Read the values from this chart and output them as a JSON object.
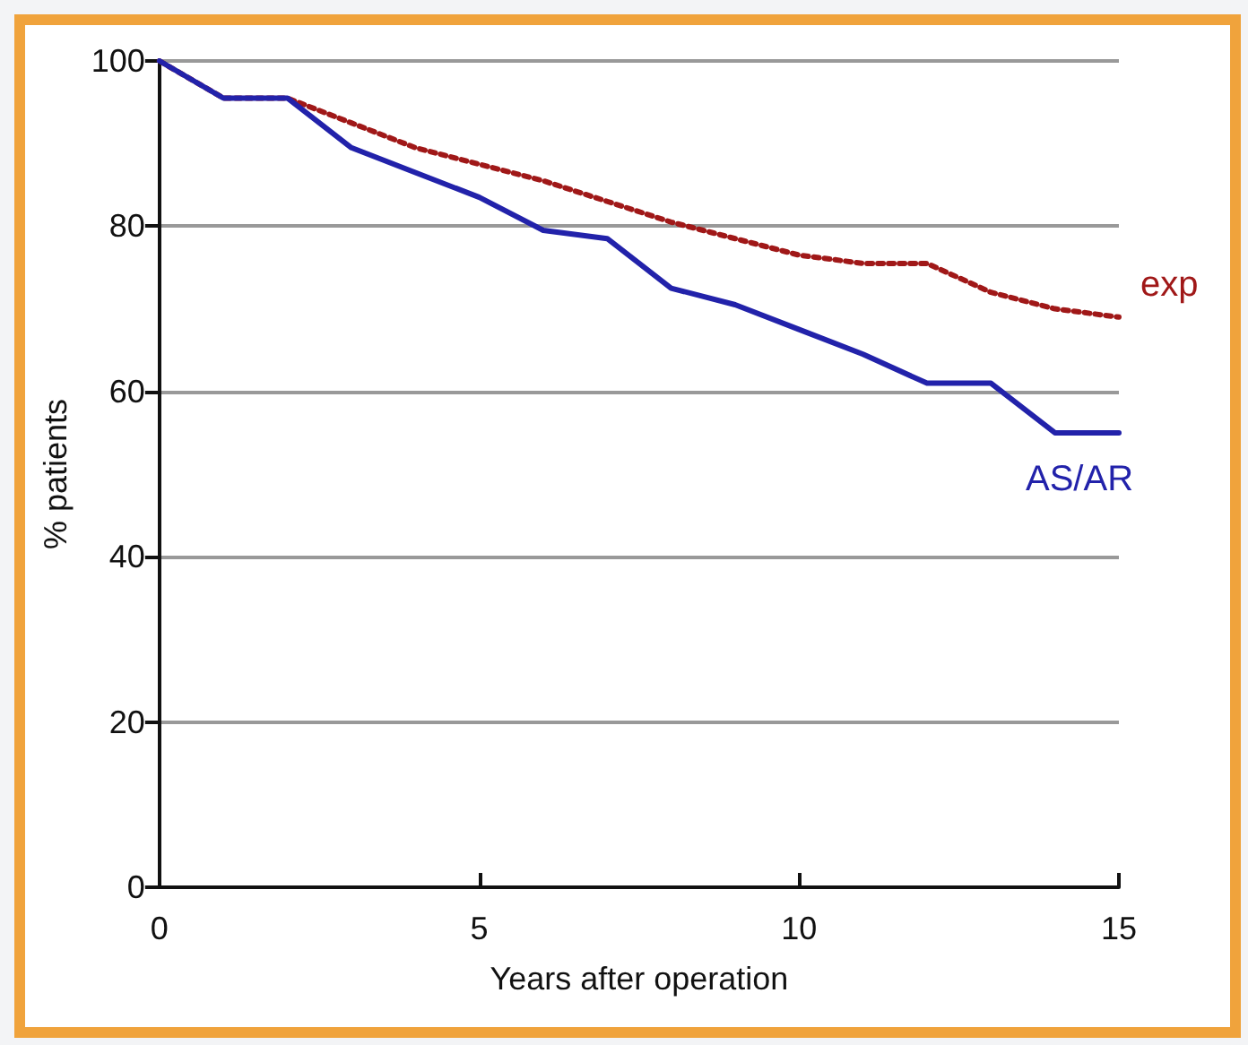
{
  "chart_data": {
    "type": "line",
    "xlabel": "Years after operation",
    "ylabel": "% patients",
    "x": [
      0,
      1,
      2,
      3,
      4,
      5,
      6,
      7,
      8,
      9,
      10,
      11,
      12,
      13,
      14,
      15
    ],
    "series": [
      {
        "name": "exp",
        "color": "#a01818",
        "line_style": "dotted",
        "values": [
          100,
          95.5,
          95.5,
          92.5,
          89.5,
          87.5,
          85.5,
          83,
          80.5,
          78.5,
          76.5,
          75.5,
          75.5,
          72,
          70,
          69
        ]
      },
      {
        "name": "AS/AR",
        "color": "#2222aa",
        "line_style": "solid",
        "values": [
          100,
          95.5,
          95.5,
          89.5,
          86.5,
          83.5,
          79.5,
          78.5,
          72.5,
          70.5,
          67.5,
          64.5,
          61,
          61,
          55,
          55
        ]
      }
    ],
    "xlim": [
      0,
      15
    ],
    "xticks": [
      0,
      5,
      10,
      15
    ],
    "ylim": [
      0,
      100
    ],
    "yticks": [
      0,
      20,
      40,
      60,
      80,
      100
    ],
    "grid": "y",
    "legend": false,
    "marker": "none"
  }
}
